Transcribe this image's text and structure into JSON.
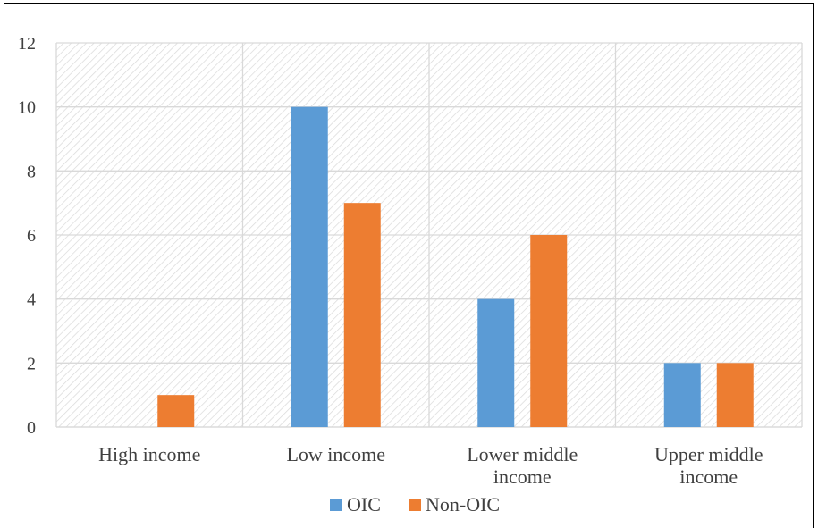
{
  "chart_data": {
    "type": "bar",
    "title": "",
    "xlabel": "",
    "ylabel": "",
    "categories": [
      [
        "High income"
      ],
      [
        "Low income"
      ],
      [
        "Lower middle",
        "income"
      ],
      [
        "Upper middle",
        "income"
      ]
    ],
    "series": [
      {
        "name": "OIC",
        "values": [
          0,
          10,
          4,
          2
        ],
        "color": "#5B9BD5"
      },
      {
        "name": "Non-OIC",
        "values": [
          1,
          7,
          6,
          2
        ],
        "color": "#ED7D31"
      }
    ],
    "ylim": [
      0,
      12
    ],
    "yticks": [
      0,
      2,
      4,
      6,
      8,
      10,
      12
    ],
    "grid": true,
    "plot_background": "diagonal-hatch",
    "legend_position": "bottom"
  }
}
